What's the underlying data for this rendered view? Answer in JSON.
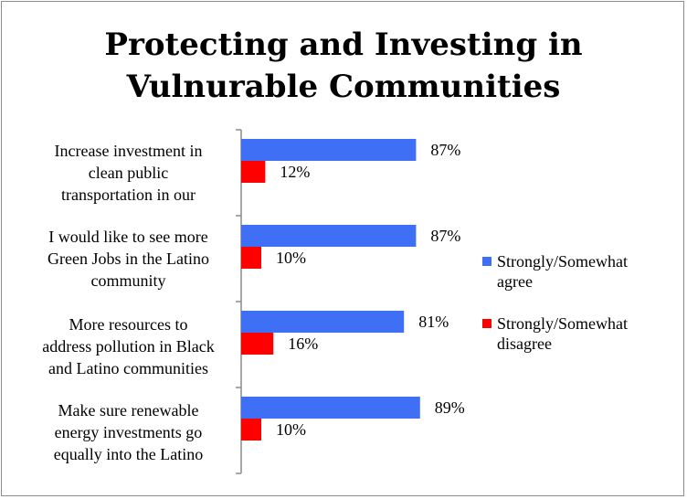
{
  "chart_data": {
    "type": "bar",
    "orientation": "horizontal",
    "title": [
      "Protecting and Investing in",
      "Vulnurable Communities"
    ],
    "categories": [
      [
        "Increase investment in",
        "clean public",
        "transportation in our"
      ],
      [
        "I would like to see more",
        "Green Jobs in the Latino",
        "community"
      ],
      [
        "More resources to",
        "address pollution in Black",
        "and Latino communities"
      ],
      [
        "Make sure renewable",
        "energy investments go",
        "equally into the Latino"
      ]
    ],
    "series": [
      {
        "name": [
          "Strongly/Somewhat",
          "agree"
        ],
        "color": "#3f6ff5",
        "values": [
          87,
          87,
          81,
          89
        ],
        "labels": [
          "87%",
          "87%",
          "81%",
          "89%"
        ]
      },
      {
        "name": [
          "Strongly/Somewhat",
          "disagree"
        ],
        "color": "#ff0000",
        "values": [
          12,
          10,
          16,
          10
        ],
        "labels": [
          "12%",
          "10%",
          "16%",
          "10%"
        ]
      }
    ],
    "xlim": [
      0,
      100
    ],
    "grid": false,
    "legend": "right",
    "data_labels": true
  }
}
